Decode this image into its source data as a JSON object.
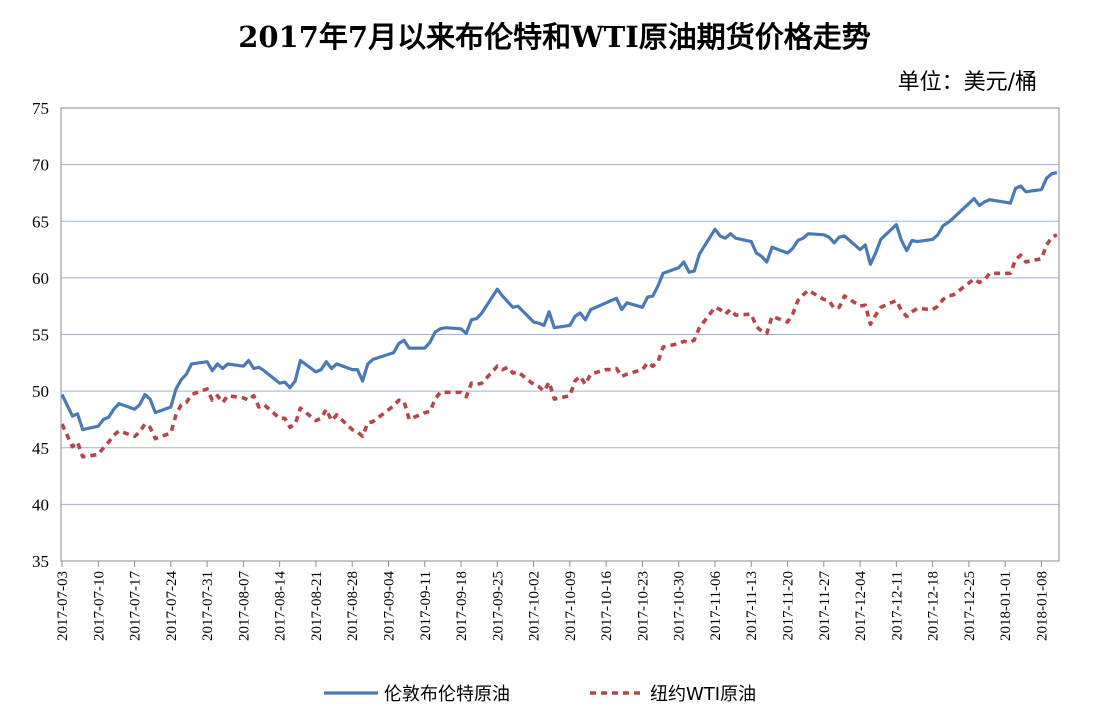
{
  "chart_data": {
    "type": "line",
    "title": "2017年7月以来布伦特和WTI原油期货价格走势",
    "unit": "单位：美元/桶",
    "ylim": [
      35,
      75
    ],
    "yticks": [
      35,
      40,
      45,
      50,
      55,
      60,
      65,
      70,
      75
    ],
    "grid": "horizontal",
    "legend_position": "bottom",
    "x_tick_labels": [
      "2017-07-03",
      "2017-07-10",
      "2017-07-17",
      "2017-07-24",
      "2017-07-31",
      "2017-08-07",
      "2017-08-14",
      "2017-08-21",
      "2017-08-28",
      "2017-09-04",
      "2017-09-11",
      "2017-09-18",
      "2017-09-25",
      "2017-10-02",
      "2017-10-09",
      "2017-10-16",
      "2017-10-23",
      "2017-10-30",
      "2017-11-06",
      "2017-11-13",
      "2017-11-20",
      "2017-11-27",
      "2017-12-04",
      "2017-12-11",
      "2017-12-18",
      "2017-12-25",
      "2018-01-01",
      "2018-01-08"
    ],
    "series": [
      {
        "name": "伦敦布伦特原油",
        "color": "#4a7ab5",
        "style": "solid",
        "points": [
          [
            "2017-07-03",
            49.7
          ],
          [
            "2017-07-05",
            47.8
          ],
          [
            "2017-07-06",
            48.0
          ],
          [
            "2017-07-07",
            46.6
          ],
          [
            "2017-07-10",
            46.9
          ],
          [
            "2017-07-11",
            47.5
          ],
          [
            "2017-07-12",
            47.7
          ],
          [
            "2017-07-13",
            48.4
          ],
          [
            "2017-07-14",
            48.9
          ],
          [
            "2017-07-17",
            48.4
          ],
          [
            "2017-07-18",
            48.8
          ],
          [
            "2017-07-19",
            49.7
          ],
          [
            "2017-07-20",
            49.3
          ],
          [
            "2017-07-21",
            48.1
          ],
          [
            "2017-07-24",
            48.6
          ],
          [
            "2017-07-25",
            50.2
          ],
          [
            "2017-07-26",
            51.0
          ],
          [
            "2017-07-27",
            51.5
          ],
          [
            "2017-07-28",
            52.4
          ],
          [
            "2017-07-31",
            52.6
          ],
          [
            "2017-08-01",
            51.8
          ],
          [
            "2017-08-02",
            52.4
          ],
          [
            "2017-08-03",
            52.0
          ],
          [
            "2017-08-04",
            52.4
          ],
          [
            "2017-08-07",
            52.2
          ],
          [
            "2017-08-08",
            52.7
          ],
          [
            "2017-08-09",
            52.0
          ],
          [
            "2017-08-10",
            52.1
          ],
          [
            "2017-08-11",
            51.8
          ],
          [
            "2017-08-14",
            50.7
          ],
          [
            "2017-08-15",
            50.8
          ],
          [
            "2017-08-16",
            50.3
          ],
          [
            "2017-08-17",
            50.9
          ],
          [
            "2017-08-18",
            52.7
          ],
          [
            "2017-08-21",
            51.7
          ],
          [
            "2017-08-22",
            51.9
          ],
          [
            "2017-08-23",
            52.6
          ],
          [
            "2017-08-24",
            52.0
          ],
          [
            "2017-08-25",
            52.4
          ],
          [
            "2017-08-28",
            51.9
          ],
          [
            "2017-08-29",
            51.9
          ],
          [
            "2017-08-30",
            50.9
          ],
          [
            "2017-08-31",
            52.4
          ],
          [
            "2017-09-01",
            52.8
          ],
          [
            "2017-09-05",
            53.4
          ],
          [
            "2017-09-06",
            54.2
          ],
          [
            "2017-09-07",
            54.5
          ],
          [
            "2017-09-08",
            53.8
          ],
          [
            "2017-09-11",
            53.8
          ],
          [
            "2017-09-12",
            54.3
          ],
          [
            "2017-09-13",
            55.2
          ],
          [
            "2017-09-14",
            55.5
          ],
          [
            "2017-09-15",
            55.6
          ],
          [
            "2017-09-18",
            55.5
          ],
          [
            "2017-09-19",
            55.1
          ],
          [
            "2017-09-20",
            56.3
          ],
          [
            "2017-09-21",
            56.4
          ],
          [
            "2017-09-22",
            56.9
          ],
          [
            "2017-09-25",
            59.0
          ],
          [
            "2017-09-26",
            58.4
          ],
          [
            "2017-09-27",
            57.9
          ],
          [
            "2017-09-28",
            57.4
          ],
          [
            "2017-09-29",
            57.5
          ],
          [
            "2017-10-02",
            56.1
          ],
          [
            "2017-10-03",
            56.0
          ],
          [
            "2017-10-04",
            55.8
          ],
          [
            "2017-10-05",
            57.0
          ],
          [
            "2017-10-06",
            55.6
          ],
          [
            "2017-10-09",
            55.8
          ],
          [
            "2017-10-10",
            56.6
          ],
          [
            "2017-10-11",
            56.9
          ],
          [
            "2017-10-12",
            56.3
          ],
          [
            "2017-10-13",
            57.2
          ],
          [
            "2017-10-16",
            57.8
          ],
          [
            "2017-10-17",
            58.0
          ],
          [
            "2017-10-18",
            58.2
          ],
          [
            "2017-10-19",
            57.2
          ],
          [
            "2017-10-20",
            57.8
          ],
          [
            "2017-10-23",
            57.4
          ],
          [
            "2017-10-24",
            58.3
          ],
          [
            "2017-10-25",
            58.4
          ],
          [
            "2017-10-26",
            59.3
          ],
          [
            "2017-10-27",
            60.4
          ],
          [
            "2017-10-30",
            60.9
          ],
          [
            "2017-10-31",
            61.4
          ],
          [
            "2017-11-01",
            60.5
          ],
          [
            "2017-11-02",
            60.6
          ],
          [
            "2017-11-03",
            62.1
          ],
          [
            "2017-11-06",
            64.3
          ],
          [
            "2017-11-07",
            63.7
          ],
          [
            "2017-11-08",
            63.5
          ],
          [
            "2017-11-09",
            63.9
          ],
          [
            "2017-11-10",
            63.5
          ],
          [
            "2017-11-13",
            63.2
          ],
          [
            "2017-11-14",
            62.2
          ],
          [
            "2017-11-15",
            61.9
          ],
          [
            "2017-11-16",
            61.4
          ],
          [
            "2017-11-17",
            62.7
          ],
          [
            "2017-11-20",
            62.2
          ],
          [
            "2017-11-21",
            62.6
          ],
          [
            "2017-11-22",
            63.3
          ],
          [
            "2017-11-23",
            63.5
          ],
          [
            "2017-11-24",
            63.9
          ],
          [
            "2017-11-27",
            63.8
          ],
          [
            "2017-11-28",
            63.6
          ],
          [
            "2017-11-29",
            63.1
          ],
          [
            "2017-11-30",
            63.6
          ],
          [
            "2017-12-01",
            63.7
          ],
          [
            "2017-12-04",
            62.5
          ],
          [
            "2017-12-05",
            62.9
          ],
          [
            "2017-12-06",
            61.2
          ],
          [
            "2017-12-07",
            62.2
          ],
          [
            "2017-12-08",
            63.4
          ],
          [
            "2017-12-11",
            64.7
          ],
          [
            "2017-12-12",
            63.3
          ],
          [
            "2017-12-13",
            62.4
          ],
          [
            "2017-12-14",
            63.3
          ],
          [
            "2017-12-15",
            63.2
          ],
          [
            "2017-12-18",
            63.4
          ],
          [
            "2017-12-19",
            63.8
          ],
          [
            "2017-12-20",
            64.6
          ],
          [
            "2017-12-21",
            64.9
          ],
          [
            "2017-12-22",
            65.3
          ],
          [
            "2017-12-26",
            67.0
          ],
          [
            "2017-12-27",
            66.4
          ],
          [
            "2017-12-28",
            66.7
          ],
          [
            "2017-12-29",
            66.9
          ],
          [
            "2018-01-02",
            66.6
          ],
          [
            "2018-01-03",
            67.9
          ],
          [
            "2018-01-04",
            68.1
          ],
          [
            "2018-01-05",
            67.6
          ],
          [
            "2018-01-08",
            67.8
          ],
          [
            "2018-01-09",
            68.8
          ],
          [
            "2018-01-10",
            69.2
          ],
          [
            "2018-01-11",
            69.3
          ]
        ]
      },
      {
        "name": "纽约WTI原油",
        "color": "#b5474c",
        "style": "dashed",
        "points": [
          [
            "2017-07-03",
            47.1
          ],
          [
            "2017-07-05",
            45.1
          ],
          [
            "2017-07-06",
            45.5
          ],
          [
            "2017-07-07",
            44.2
          ],
          [
            "2017-07-10",
            44.4
          ],
          [
            "2017-07-11",
            45.0
          ],
          [
            "2017-07-12",
            45.5
          ],
          [
            "2017-07-13",
            46.1
          ],
          [
            "2017-07-14",
            46.5
          ],
          [
            "2017-07-17",
            46.0
          ],
          [
            "2017-07-18",
            46.4
          ],
          [
            "2017-07-19",
            47.1
          ],
          [
            "2017-07-20",
            46.8
          ],
          [
            "2017-07-21",
            45.8
          ],
          [
            "2017-07-24",
            46.3
          ],
          [
            "2017-07-25",
            47.9
          ],
          [
            "2017-07-26",
            48.8
          ],
          [
            "2017-07-27",
            49.0
          ],
          [
            "2017-07-28",
            49.7
          ],
          [
            "2017-07-31",
            50.2
          ],
          [
            "2017-08-01",
            49.2
          ],
          [
            "2017-08-02",
            49.6
          ],
          [
            "2017-08-03",
            49.0
          ],
          [
            "2017-08-04",
            49.6
          ],
          [
            "2017-08-07",
            49.4
          ],
          [
            "2017-08-08",
            49.2
          ],
          [
            "2017-08-09",
            49.6
          ],
          [
            "2017-08-10",
            48.6
          ],
          [
            "2017-08-11",
            48.8
          ],
          [
            "2017-08-14",
            47.6
          ],
          [
            "2017-08-15",
            47.6
          ],
          [
            "2017-08-16",
            46.8
          ],
          [
            "2017-08-17",
            47.1
          ],
          [
            "2017-08-18",
            48.5
          ],
          [
            "2017-08-21",
            47.4
          ],
          [
            "2017-08-22",
            47.6
          ],
          [
            "2017-08-23",
            48.4
          ],
          [
            "2017-08-24",
            47.4
          ],
          [
            "2017-08-25",
            47.9
          ],
          [
            "2017-08-28",
            46.6
          ],
          [
            "2017-08-29",
            46.4
          ],
          [
            "2017-08-30",
            46.0
          ],
          [
            "2017-08-31",
            47.2
          ],
          [
            "2017-09-01",
            47.3
          ],
          [
            "2017-09-05",
            48.7
          ],
          [
            "2017-09-06",
            49.2
          ],
          [
            "2017-09-07",
            49.1
          ],
          [
            "2017-09-08",
            47.5
          ],
          [
            "2017-09-11",
            48.1
          ],
          [
            "2017-09-12",
            48.2
          ],
          [
            "2017-09-13",
            49.3
          ],
          [
            "2017-09-14",
            49.9
          ],
          [
            "2017-09-15",
            49.9
          ],
          [
            "2017-09-18",
            49.9
          ],
          [
            "2017-09-19",
            49.5
          ],
          [
            "2017-09-20",
            50.7
          ],
          [
            "2017-09-21",
            50.6
          ],
          [
            "2017-09-22",
            50.7
          ],
          [
            "2017-09-25",
            52.2
          ],
          [
            "2017-09-26",
            51.9
          ],
          [
            "2017-09-27",
            52.1
          ],
          [
            "2017-09-28",
            51.6
          ],
          [
            "2017-09-29",
            51.7
          ],
          [
            "2017-10-02",
            50.6
          ],
          [
            "2017-10-03",
            50.4
          ],
          [
            "2017-10-04",
            50.0
          ],
          [
            "2017-10-05",
            50.8
          ],
          [
            "2017-10-06",
            49.3
          ],
          [
            "2017-10-09",
            49.6
          ],
          [
            "2017-10-10",
            50.9
          ],
          [
            "2017-10-11",
            51.3
          ],
          [
            "2017-10-12",
            50.6
          ],
          [
            "2017-10-13",
            51.5
          ],
          [
            "2017-10-16",
            51.9
          ],
          [
            "2017-10-17",
            51.9
          ],
          [
            "2017-10-18",
            52.0
          ],
          [
            "2017-10-19",
            51.3
          ],
          [
            "2017-10-20",
            51.5
          ],
          [
            "2017-10-23",
            51.9
          ],
          [
            "2017-10-24",
            52.5
          ],
          [
            "2017-10-25",
            52.2
          ],
          [
            "2017-10-26",
            52.6
          ],
          [
            "2017-10-27",
            53.9
          ],
          [
            "2017-10-30",
            54.2
          ],
          [
            "2017-10-31",
            54.4
          ],
          [
            "2017-11-01",
            54.3
          ],
          [
            "2017-11-02",
            54.5
          ],
          [
            "2017-11-03",
            55.6
          ],
          [
            "2017-11-06",
            57.4
          ],
          [
            "2017-11-07",
            57.2
          ],
          [
            "2017-11-08",
            56.8
          ],
          [
            "2017-11-09",
            57.2
          ],
          [
            "2017-11-10",
            56.7
          ],
          [
            "2017-11-13",
            56.8
          ],
          [
            "2017-11-14",
            55.7
          ],
          [
            "2017-11-15",
            55.3
          ],
          [
            "2017-11-16",
            55.1
          ],
          [
            "2017-11-17",
            56.6
          ],
          [
            "2017-11-20",
            56.1
          ],
          [
            "2017-11-21",
            56.8
          ],
          [
            "2017-11-22",
            58.0
          ],
          [
            "2017-11-23",
            58.5
          ],
          [
            "2017-11-24",
            58.9
          ],
          [
            "2017-11-27",
            58.1
          ],
          [
            "2017-11-28",
            58.0
          ],
          [
            "2017-11-29",
            57.3
          ],
          [
            "2017-11-30",
            57.4
          ],
          [
            "2017-12-01",
            58.4
          ],
          [
            "2017-12-04",
            57.5
          ],
          [
            "2017-12-05",
            57.6
          ],
          [
            "2017-12-06",
            55.9
          ],
          [
            "2017-12-07",
            56.7
          ],
          [
            "2017-12-08",
            57.4
          ],
          [
            "2017-12-11",
            58.0
          ],
          [
            "2017-12-12",
            57.1
          ],
          [
            "2017-12-13",
            56.6
          ],
          [
            "2017-12-14",
            57.0
          ],
          [
            "2017-12-15",
            57.3
          ],
          [
            "2017-12-18",
            57.2
          ],
          [
            "2017-12-19",
            57.5
          ],
          [
            "2017-12-20",
            58.1
          ],
          [
            "2017-12-21",
            58.4
          ],
          [
            "2017-12-22",
            58.5
          ],
          [
            "2017-12-26",
            59.9
          ],
          [
            "2017-12-27",
            59.6
          ],
          [
            "2017-12-28",
            59.8
          ],
          [
            "2017-12-29",
            60.4
          ],
          [
            "2018-01-02",
            60.4
          ],
          [
            "2018-01-03",
            61.6
          ],
          [
            "2018-01-04",
            62.0
          ],
          [
            "2018-01-05",
            61.4
          ],
          [
            "2018-01-08",
            61.7
          ],
          [
            "2018-01-09",
            62.9
          ],
          [
            "2018-01-10",
            63.6
          ],
          [
            "2018-01-11",
            63.8
          ]
        ]
      }
    ]
  }
}
